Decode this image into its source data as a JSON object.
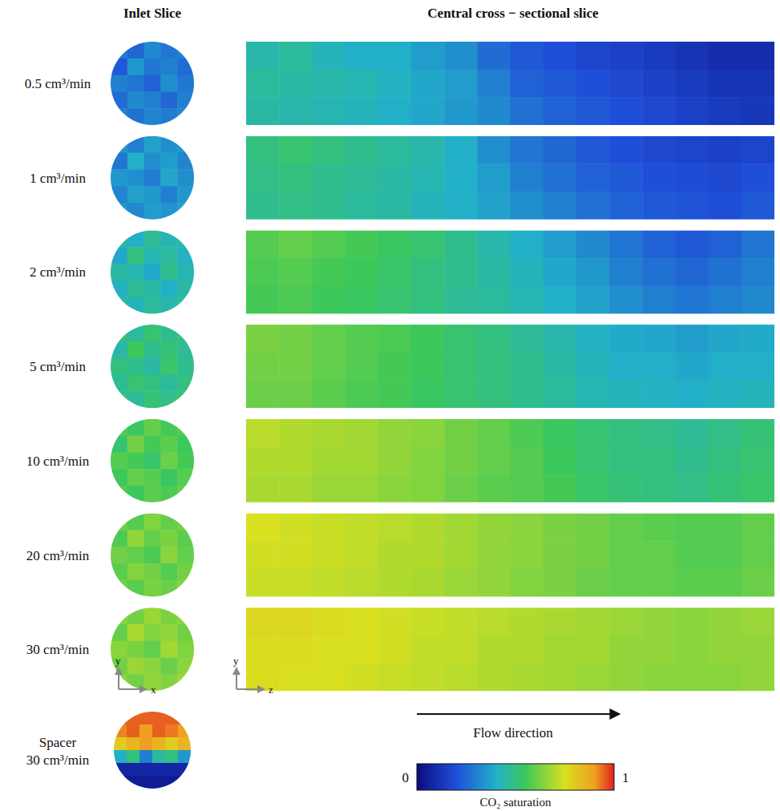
{
  "chart_data": {
    "type": "heatmap",
    "column_titles": [
      "Inlet Slice",
      "Central cross − sectional slice"
    ],
    "inlet_axes": [
      "x",
      "y"
    ],
    "section_axes": [
      "z",
      "y"
    ],
    "flow_label": "Flow direction",
    "colorbar": {
      "label": "CO₂ saturation",
      "range": [
        0,
        1
      ],
      "ticks": [
        0,
        1
      ]
    },
    "rows": [
      {
        "label": "0.5 cm³/min",
        "inlet": [
          [
            0.3,
            0.25,
            0.32,
            0.28,
            0.3
          ],
          [
            0.22,
            0.35,
            0.28,
            0.3,
            0.26
          ],
          [
            0.3,
            0.28,
            0.24,
            0.33,
            0.28
          ],
          [
            0.26,
            0.32,
            0.3,
            0.25,
            0.3
          ],
          [
            0.3,
            0.27,
            0.31,
            0.29,
            0.32
          ]
        ],
        "cross_section": [
          [
            0.44,
            0.46,
            0.42,
            0.4,
            0.4,
            0.36,
            0.33,
            0.26,
            0.22,
            0.2,
            0.17,
            0.16,
            0.14,
            0.12,
            0.1,
            0.1
          ],
          [
            0.46,
            0.45,
            0.44,
            0.43,
            0.41,
            0.38,
            0.36,
            0.3,
            0.24,
            0.22,
            0.2,
            0.18,
            0.16,
            0.14,
            0.12,
            0.12
          ],
          [
            0.45,
            0.44,
            0.43,
            0.42,
            0.4,
            0.38,
            0.35,
            0.32,
            0.27,
            0.24,
            0.22,
            0.2,
            0.18,
            0.16,
            0.14,
            0.13
          ]
        ]
      },
      {
        "label": "1 cm³/min",
        "inlet": [
          [
            0.35,
            0.3,
            0.37,
            0.33,
            0.35
          ],
          [
            0.28,
            0.4,
            0.33,
            0.36,
            0.31
          ],
          [
            0.35,
            0.33,
            0.29,
            0.38,
            0.33
          ],
          [
            0.31,
            0.37,
            0.35,
            0.3,
            0.35
          ],
          [
            0.35,
            0.32,
            0.36,
            0.34,
            0.37
          ]
        ],
        "cross_section": [
          [
            0.5,
            0.52,
            0.5,
            0.48,
            0.46,
            0.44,
            0.4,
            0.33,
            0.28,
            0.25,
            0.22,
            0.2,
            0.18,
            0.17,
            0.16,
            0.17
          ],
          [
            0.49,
            0.5,
            0.48,
            0.47,
            0.45,
            0.43,
            0.4,
            0.36,
            0.3,
            0.27,
            0.24,
            0.22,
            0.2,
            0.19,
            0.18,
            0.2
          ],
          [
            0.48,
            0.49,
            0.48,
            0.46,
            0.45,
            0.42,
            0.4,
            0.37,
            0.33,
            0.3,
            0.27,
            0.24,
            0.22,
            0.21,
            0.2,
            0.22
          ]
        ]
      },
      {
        "label": "2 cm³/min",
        "inlet": [
          [
            0.45,
            0.4,
            0.47,
            0.43,
            0.45
          ],
          [
            0.38,
            0.5,
            0.43,
            0.46,
            0.41
          ],
          [
            0.45,
            0.43,
            0.39,
            0.48,
            0.43
          ],
          [
            0.41,
            0.47,
            0.45,
            0.4,
            0.45
          ],
          [
            0.45,
            0.42,
            0.46,
            0.44,
            0.47
          ]
        ],
        "cross_section": [
          [
            0.58,
            0.6,
            0.58,
            0.56,
            0.54,
            0.52,
            0.48,
            0.44,
            0.4,
            0.36,
            0.32,
            0.28,
            0.24,
            0.22,
            0.24,
            0.28
          ],
          [
            0.57,
            0.58,
            0.56,
            0.55,
            0.53,
            0.5,
            0.48,
            0.45,
            0.42,
            0.38,
            0.35,
            0.3,
            0.27,
            0.25,
            0.27,
            0.3
          ],
          [
            0.56,
            0.57,
            0.55,
            0.54,
            0.52,
            0.5,
            0.47,
            0.46,
            0.43,
            0.4,
            0.37,
            0.33,
            0.3,
            0.28,
            0.3,
            0.32
          ]
        ]
      },
      {
        "label": "5 cm³/min",
        "inlet": [
          [
            0.5,
            0.46,
            0.52,
            0.48,
            0.5
          ],
          [
            0.44,
            0.55,
            0.48,
            0.51,
            0.47
          ],
          [
            0.5,
            0.48,
            0.45,
            0.53,
            0.48
          ],
          [
            0.47,
            0.52,
            0.5,
            0.46,
            0.5
          ],
          [
            0.5,
            0.47,
            0.51,
            0.49,
            0.52
          ]
        ],
        "cross_section": [
          [
            0.63,
            0.62,
            0.6,
            0.58,
            0.57,
            0.55,
            0.52,
            0.5,
            0.47,
            0.44,
            0.41,
            0.39,
            0.38,
            0.36,
            0.38,
            0.39
          ],
          [
            0.62,
            0.62,
            0.6,
            0.58,
            0.56,
            0.55,
            0.52,
            0.5,
            0.48,
            0.45,
            0.42,
            0.4,
            0.4,
            0.38,
            0.4,
            0.4
          ],
          [
            0.61,
            0.61,
            0.59,
            0.57,
            0.56,
            0.54,
            0.52,
            0.5,
            0.48,
            0.46,
            0.43,
            0.42,
            0.41,
            0.4,
            0.41,
            0.42
          ]
        ]
      },
      {
        "label": "10 cm³/min",
        "inlet": [
          [
            0.58,
            0.54,
            0.6,
            0.56,
            0.58
          ],
          [
            0.52,
            0.62,
            0.56,
            0.59,
            0.55
          ],
          [
            0.58,
            0.56,
            0.53,
            0.61,
            0.56
          ],
          [
            0.55,
            0.6,
            0.58,
            0.54,
            0.58
          ],
          [
            0.58,
            0.55,
            0.59,
            0.57,
            0.6
          ]
        ],
        "cross_section": [
          [
            0.71,
            0.7,
            0.69,
            0.68,
            0.66,
            0.65,
            0.62,
            0.6,
            0.57,
            0.54,
            0.52,
            0.5,
            0.49,
            0.47,
            0.49,
            0.51
          ],
          [
            0.7,
            0.7,
            0.68,
            0.68,
            0.66,
            0.64,
            0.62,
            0.6,
            0.58,
            0.55,
            0.52,
            0.5,
            0.5,
            0.48,
            0.5,
            0.52
          ],
          [
            0.69,
            0.69,
            0.67,
            0.67,
            0.65,
            0.64,
            0.61,
            0.59,
            0.58,
            0.56,
            0.53,
            0.51,
            0.5,
            0.49,
            0.51,
            0.53
          ]
        ]
      },
      {
        "label": "20 cm³/min",
        "inlet": [
          [
            0.62,
            0.58,
            0.64,
            0.6,
            0.62
          ],
          [
            0.57,
            0.66,
            0.6,
            0.63,
            0.59
          ],
          [
            0.62,
            0.6,
            0.57,
            0.65,
            0.6
          ],
          [
            0.59,
            0.64,
            0.62,
            0.58,
            0.62
          ],
          [
            0.62,
            0.59,
            0.63,
            0.61,
            0.64
          ]
        ],
        "cross_section": [
          [
            0.75,
            0.74,
            0.73,
            0.72,
            0.71,
            0.7,
            0.68,
            0.66,
            0.65,
            0.63,
            0.62,
            0.6,
            0.59,
            0.58,
            0.58,
            0.6
          ],
          [
            0.74,
            0.74,
            0.73,
            0.72,
            0.7,
            0.7,
            0.68,
            0.66,
            0.65,
            0.63,
            0.62,
            0.6,
            0.6,
            0.58,
            0.58,
            0.6
          ],
          [
            0.73,
            0.73,
            0.72,
            0.71,
            0.7,
            0.69,
            0.67,
            0.66,
            0.64,
            0.63,
            0.61,
            0.6,
            0.6,
            0.59,
            0.59,
            0.61
          ]
        ]
      },
      {
        "label": "30 cm³/min",
        "inlet": [
          [
            0.65,
            0.62,
            0.67,
            0.63,
            0.65
          ],
          [
            0.6,
            0.69,
            0.64,
            0.66,
            0.62
          ],
          [
            0.65,
            0.63,
            0.6,
            0.68,
            0.64
          ],
          [
            0.62,
            0.67,
            0.65,
            0.61,
            0.65
          ],
          [
            0.65,
            0.62,
            0.66,
            0.64,
            0.67
          ]
        ],
        "cross_section": [
          [
            0.77,
            0.77,
            0.76,
            0.75,
            0.74,
            0.73,
            0.72,
            0.71,
            0.7,
            0.69,
            0.68,
            0.67,
            0.66,
            0.65,
            0.66,
            0.67
          ],
          [
            0.76,
            0.76,
            0.75,
            0.75,
            0.74,
            0.72,
            0.72,
            0.7,
            0.7,
            0.68,
            0.68,
            0.66,
            0.66,
            0.65,
            0.66,
            0.66
          ],
          [
            0.76,
            0.75,
            0.75,
            0.74,
            0.73,
            0.72,
            0.71,
            0.7,
            0.69,
            0.68,
            0.67,
            0.66,
            0.65,
            0.65,
            0.65,
            0.66
          ]
        ]
      }
    ],
    "spacer": {
      "label": [
        "Spacer",
        "30 cm³/min"
      ],
      "inlet": [
        [
          0.95,
          0.95,
          0.95,
          0.95,
          0.95,
          0.95
        ],
        [
          0.92,
          0.95,
          0.9,
          0.95,
          0.93,
          0.9
        ],
        [
          0.8,
          0.85,
          0.9,
          0.85,
          0.8,
          0.85
        ],
        [
          0.4,
          0.5,
          0.3,
          0.45,
          0.5,
          0.35
        ],
        [
          0.08,
          0.08,
          0.08,
          0.08,
          0.08,
          0.08
        ],
        [
          0.05,
          0.05,
          0.05,
          0.05,
          0.05,
          0.05
        ]
      ]
    }
  }
}
